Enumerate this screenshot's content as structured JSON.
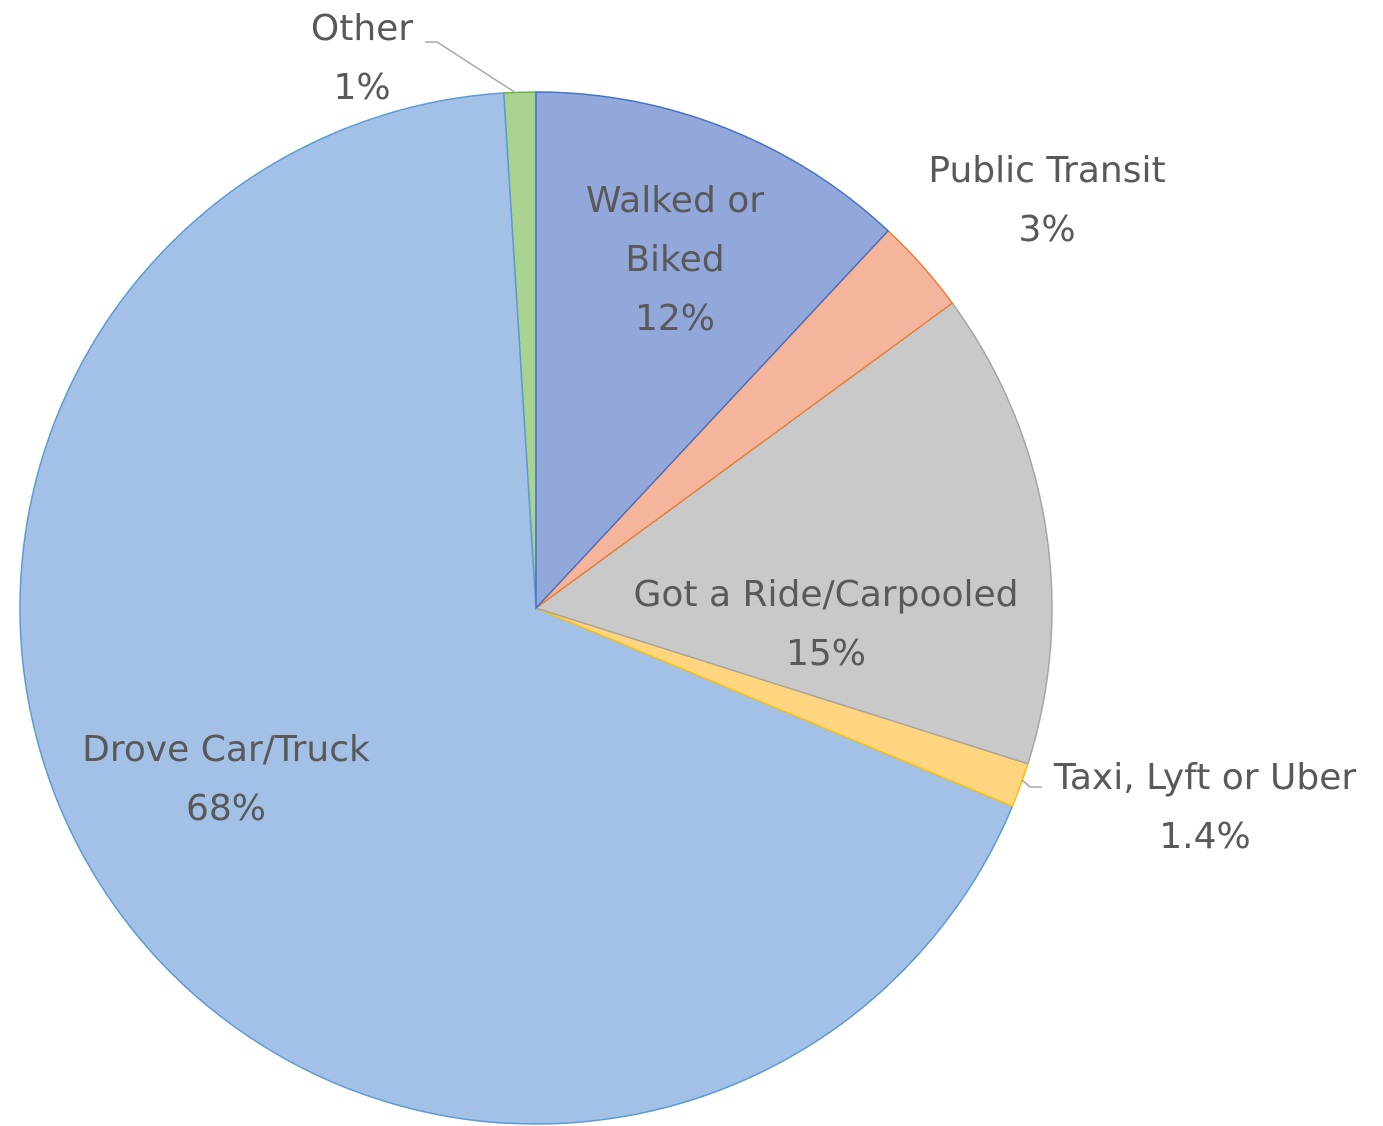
{
  "chart_data": {
    "type": "pie",
    "categories": [
      "Walked or Biked",
      "Public Transit",
      "Got a Ride/Carpooled",
      "Taxi, Lyft or Uber",
      "Drove Car/Truck",
      "Other"
    ],
    "values": [
      12,
      3,
      15,
      1.4,
      68,
      1
    ],
    "value_labels": [
      "12%",
      "3%",
      "15%",
      "1.4%",
      "68%",
      "1%"
    ],
    "colors": [
      "#93a8da",
      "#f5b59d",
      "#c9c9c9",
      "#ffd67f",
      "#a3c1e6",
      "#aad290"
    ],
    "edge_colors": [
      "#4472c4",
      "#ed7d31",
      "#a5a5a5",
      "#ffc000",
      "#5b9bd5",
      "#70ad47"
    ]
  }
}
